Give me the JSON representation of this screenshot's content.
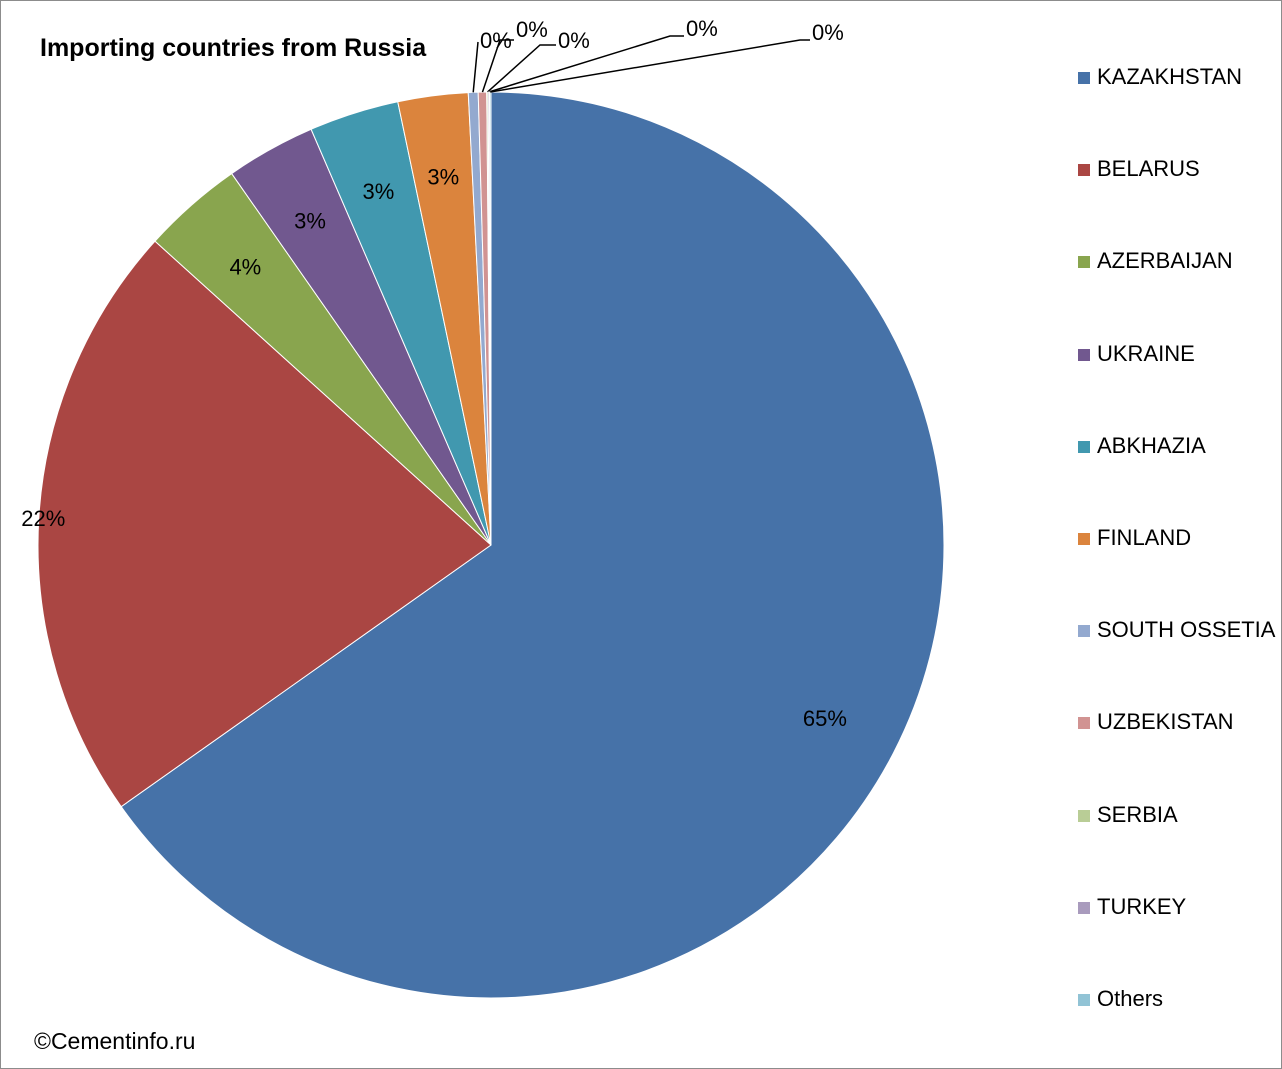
{
  "chart_data": {
    "type": "pie",
    "title": "Importing countries from Russia",
    "slices": [
      {
        "name": "KAZAKHSTAN",
        "value": 65.2,
        "label": "65%",
        "color": "#4672A8"
      },
      {
        "name": "BELARUS",
        "value": 21.5,
        "label": "22%",
        "color": "#AA4643"
      },
      {
        "name": "AZERBAIJAN",
        "value": 3.6,
        "label": "4%",
        "color": "#89A54E"
      },
      {
        "name": "UKRAINE",
        "value": 3.2,
        "label": "3%",
        "color": "#71588F"
      },
      {
        "name": "ABKHAZIA",
        "value": 3.2,
        "label": "3%",
        "color": "#4198AF"
      },
      {
        "name": "FINLAND",
        "value": 2.5,
        "label": "3%",
        "color": "#DB843D"
      },
      {
        "name": "SOUTH OSSETIA",
        "value": 0.35,
        "label": "0%",
        "color": "#93A9CF"
      },
      {
        "name": "UZBEKISTAN",
        "value": 0.3,
        "label": "0%",
        "color": "#D19392"
      },
      {
        "name": "SERBIA",
        "value": 0.05,
        "label": "0%",
        "color": "#B9CD96"
      },
      {
        "name": "TURKEY",
        "value": 0.05,
        "label": "0%",
        "color": "#A99BBD"
      },
      {
        "name": "Others",
        "value": 0.05,
        "label": "0%",
        "color": "#91C3D5"
      }
    ],
    "legend_position": "right"
  },
  "footer": {
    "copyright": "©Cementinfo.ru"
  }
}
